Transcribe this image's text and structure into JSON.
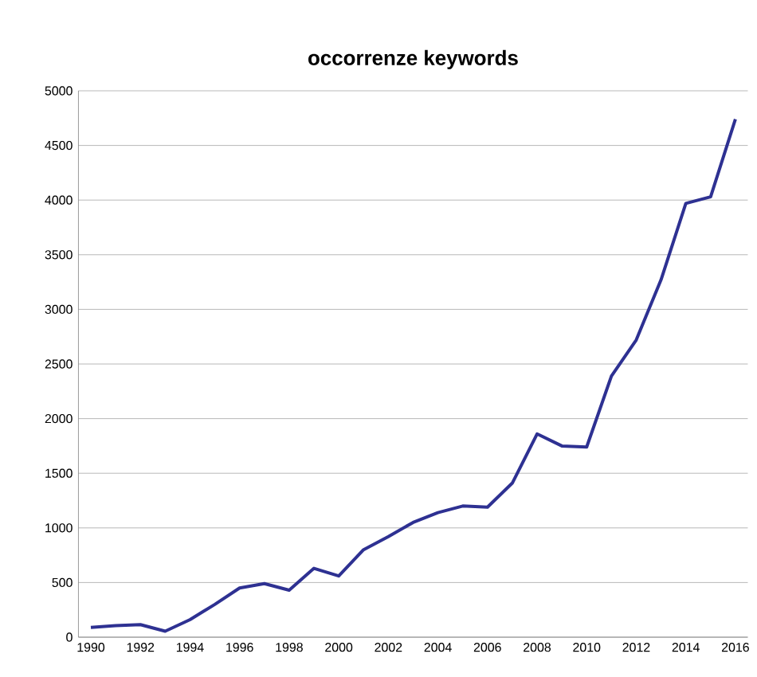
{
  "chart_data": {
    "type": "line",
    "title": "occorrenze keywords",
    "categories": [
      "1990",
      null,
      "1992",
      null,
      "1994",
      null,
      "1996",
      null,
      "1998",
      null,
      "2000",
      null,
      "2002",
      null,
      "2004",
      null,
      "2006",
      null,
      "2008",
      null,
      "2010",
      null,
      "2012",
      null,
      "2014",
      null,
      "2016"
    ],
    "series": [
      {
        "color": "#2e3192",
        "values": [
          90,
          105,
          115,
          55,
          160,
          300,
          450,
          490,
          430,
          630,
          560,
          800,
          920,
          1050,
          1140,
          1200,
          1190,
          1410,
          1860,
          1750,
          1740,
          2390,
          2720,
          3270,
          3970,
          4030,
          4740
        ]
      }
    ],
    "ylim": [
      0,
      5000
    ],
    "yticks": [
      0,
      500,
      1000,
      1500,
      2000,
      2500,
      3000,
      3500,
      4000,
      4500,
      5000
    ],
    "grid": "y",
    "legend": false,
    "marker": "none",
    "line_style": "solid"
  }
}
